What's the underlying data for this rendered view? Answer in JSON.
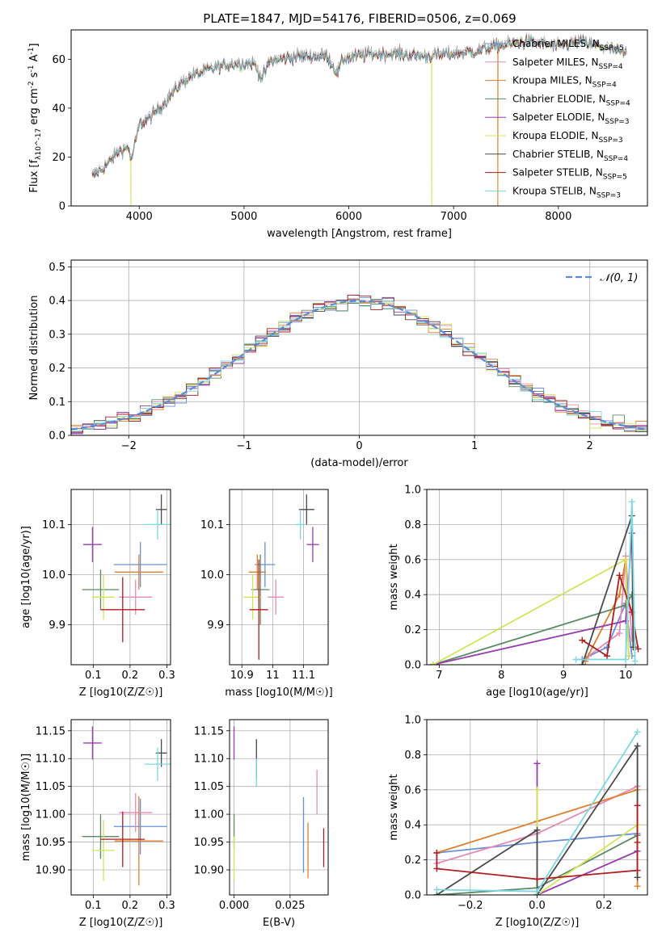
{
  "title": "PLATE=1847, MJD=54176, FIBERID=0506, z=0.069",
  "colors": [
    "#6a8fd8",
    "#e88ab8",
    "#e0802c",
    "#5a8a62",
    "#9a3cb0",
    "#d4e45a",
    "#4a4a4a",
    "#b01e1e",
    "#7cd8e2"
  ],
  "chart_data": [
    {
      "type": "line",
      "id": "spectrum",
      "xlabel": "wavelength [Angstrom, rest frame]",
      "ylabel": "Flux [f_λ10^-17 erg cm^-2 s^-1 A^-1]",
      "xlim": [
        3350,
        8850
      ],
      "ylim": [
        0,
        72
      ],
      "xticks": [
        4000,
        5000,
        6000,
        7000,
        8000
      ],
      "yticks": [
        0,
        20,
        40,
        60
      ],
      "grid": false,
      "legend_position": "top-right",
      "series": [
        {
          "name": "Chabrier MILES, N_SSP=5"
        },
        {
          "name": "Salpeter MILES, N_SSP=4"
        },
        {
          "name": "Kroupa MILES, N_SSP=4"
        },
        {
          "name": "Chabrier ELODIE, N_SSP=4"
        },
        {
          "name": "Salpeter ELODIE, N_SSP=3"
        },
        {
          "name": "Kroupa ELODIE, N_SSP=3"
        },
        {
          "name": "Chabrier STELIB, N_SSP=4"
        },
        {
          "name": "Salpeter STELIB, N_SSP=5"
        },
        {
          "name": "Kroupa STELIB, N_SSP=3"
        }
      ],
      "continuum_points": [
        [
          3550,
          12
        ],
        [
          3700,
          17
        ],
        [
          3800,
          22
        ],
        [
          3900,
          24
        ],
        [
          3920,
          18
        ],
        [
          3960,
          25
        ],
        [
          4000,
          33
        ],
        [
          4100,
          36
        ],
        [
          4200,
          40
        ],
        [
          4300,
          45
        ],
        [
          4400,
          50
        ],
        [
          4500,
          53
        ],
        [
          4700,
          56
        ],
        [
          4900,
          58
        ],
        [
          5100,
          58
        ],
        [
          5170,
          52
        ],
        [
          5250,
          59
        ],
        [
          5500,
          61
        ],
        [
          5800,
          61
        ],
        [
          5890,
          54
        ],
        [
          5950,
          60
        ],
        [
          6200,
          62
        ],
        [
          6500,
          62
        ],
        [
          6700,
          61
        ],
        [
          7000,
          62
        ],
        [
          7200,
          63
        ],
        [
          7500,
          66
        ],
        [
          7700,
          67
        ],
        [
          8000,
          65
        ],
        [
          8200,
          67
        ],
        [
          8500,
          64
        ],
        [
          8650,
          62
        ]
      ],
      "dropouts": [
        {
          "x": 3920,
          "series": "Kroupa ELODIE, N_SSP=3"
        },
        {
          "x": 6790,
          "series": "Kroupa ELODIE, N_SSP=3"
        },
        {
          "x": 7420,
          "series": "Kroupa MILES, N_SSP=4"
        }
      ]
    },
    {
      "type": "area",
      "id": "residuals",
      "xlabel": "(data-model)/error",
      "ylabel": "Normed distribution",
      "xlim": [
        -2.5,
        2.5
      ],
      "ylim": [
        0,
        0.52
      ],
      "xticks": [
        -2,
        -1,
        0,
        1,
        2
      ],
      "yticks": [
        0.0,
        0.1,
        0.2,
        0.3,
        0.4,
        0.5
      ],
      "grid": true,
      "legend_position": "top-right",
      "reference_curve": {
        "name": "𝒩(0, 1)",
        "mean": 0,
        "sigma": 1
      },
      "bin_width": 0.1,
      "bin_start": -2.5
    },
    {
      "type": "scatter",
      "id": "age-vs-Z",
      "xlabel": "Z [log10(Z/Z☉)]",
      "ylabel": "age  [log10(age/yr)]",
      "xlim": [
        0.04,
        0.31
      ],
      "ylim": [
        9.82,
        10.17
      ],
      "xticks": [
        0.1,
        0.2,
        0.3
      ],
      "yticks": [
        9.9,
        10.0,
        10.1
      ],
      "grid": true,
      "points": [
        {
          "x": 0.228,
          "y": 10.02,
          "xerr": 0.072,
          "yerr": 0.045
        },
        {
          "x": 0.215,
          "y": 9.955,
          "xerr": 0.045,
          "yerr": 0.035
        },
        {
          "x": 0.224,
          "y": 10.005,
          "xerr": 0.066,
          "yerr": 0.035
        },
        {
          "x": 0.12,
          "y": 9.97,
          "xerr": 0.05,
          "yerr": 0.04
        },
        {
          "x": 0.098,
          "y": 10.06,
          "xerr": 0.025,
          "yerr": 0.035
        },
        {
          "x": 0.128,
          "y": 9.955,
          "xerr": 0.03,
          "yerr": 0.045
        },
        {
          "x": 0.285,
          "y": 10.13,
          "xerr": 0.015,
          "yerr": 0.03
        },
        {
          "x": 0.18,
          "y": 9.93,
          "xerr": 0.06,
          "yerr": 0.065
        },
        {
          "x": 0.275,
          "y": 10.1,
          "xerr": 0.035,
          "yerr": 0.03
        }
      ]
    },
    {
      "type": "scatter",
      "id": "age-vs-mass",
      "xlabel": "mass [log10(M/M☉)]",
      "ylabel": "",
      "xlim": [
        10.86,
        11.18
      ],
      "ylim": [
        9.82,
        10.17
      ],
      "xticks": [
        10.9,
        11.0,
        11.1
      ],
      "yticks": [
        9.9,
        10.0,
        10.1
      ],
      "grid": true,
      "points": [
        {
          "x": 10.975,
          "y": 10.02,
          "xerr": 0.033,
          "yerr": 0.045
        },
        {
          "x": 11.01,
          "y": 9.955,
          "xerr": 0.026,
          "yerr": 0.035
        },
        {
          "x": 10.95,
          "y": 10.005,
          "xerr": 0.028,
          "yerr": 0.035
        },
        {
          "x": 10.96,
          "y": 9.97,
          "xerr": 0.03,
          "yerr": 0.07
        },
        {
          "x": 11.13,
          "y": 10.06,
          "xerr": 0.02,
          "yerr": 0.035
        },
        {
          "x": 10.935,
          "y": 9.955,
          "xerr": 0.03,
          "yerr": 0.045
        },
        {
          "x": 11.11,
          "y": 10.13,
          "xerr": 0.025,
          "yerr": 0.03
        },
        {
          "x": 10.955,
          "y": 9.93,
          "xerr": 0.03,
          "yerr": 0.1
        },
        {
          "x": 11.09,
          "y": 10.1,
          "xerr": 0.015,
          "yerr": 0.03
        }
      ]
    },
    {
      "type": "line",
      "id": "mass-weight-vs-age",
      "xlabel": "age  [log10(age/yr)]",
      "ylabel": "mass weight",
      "xlim": [
        6.8,
        10.35
      ],
      "ylim": [
        0,
        1.0
      ],
      "xticks": [
        7,
        8,
        9,
        10
      ],
      "yticks": [
        0.0,
        0.2,
        0.4,
        0.6,
        0.8,
        1.0
      ],
      "grid": true,
      "series": [
        {
          "points": [
            [
              9.3,
              0.03
            ],
            [
              9.7,
              0.1
            ],
            [
              10.0,
              0.35
            ],
            [
              10.1,
              0.05
            ]
          ]
        },
        {
          "points": [
            [
              9.4,
              0.05
            ],
            [
              9.9,
              0.18
            ],
            [
              10.0,
              0.62
            ],
            [
              10.1,
              0.15
            ]
          ]
        },
        {
          "points": [
            [
              9.35,
              0.02
            ],
            [
              9.9,
              0.4
            ],
            [
              10.0,
              0.6
            ],
            [
              10.05,
              0.05
            ]
          ]
        },
        {
          "points": [
            [
              6.9,
              0.0
            ],
            [
              10.0,
              0.34
            ],
            [
              10.1,
              0.4
            ],
            [
              10.15,
              0.1
            ]
          ]
        },
        {
          "points": [
            [
              6.9,
              0.0
            ],
            [
              10.0,
              0.25
            ],
            [
              10.1,
              0.75
            ]
          ]
        },
        {
          "points": [
            [
              6.9,
              0.0
            ],
            [
              10.0,
              0.6
            ],
            [
              10.05,
              0.05
            ]
          ]
        },
        {
          "points": [
            [
              9.3,
              0.0
            ],
            [
              10.1,
              0.85
            ],
            [
              10.12,
              0.1
            ]
          ]
        },
        {
          "points": [
            [
              9.3,
              0.14
            ],
            [
              9.7,
              0.05
            ],
            [
              9.9,
              0.51
            ],
            [
              10.1,
              0.3
            ],
            [
              10.2,
              0.09
            ]
          ]
        },
        {
          "points": [
            [
              9.2,
              0.03
            ],
            [
              10.0,
              0.03
            ],
            [
              10.1,
              0.93
            ],
            [
              10.15,
              0.02
            ]
          ]
        }
      ]
    },
    {
      "type": "scatter",
      "id": "mass-vs-Z",
      "xlabel": "Z [log10(Z/Z☉)]",
      "ylabel": "mass [log10(M/M☉)]",
      "xlim": [
        0.04,
        0.31
      ],
      "ylim": [
        10.855,
        11.17
      ],
      "xticks": [
        0.1,
        0.2,
        0.3
      ],
      "yticks": [
        10.9,
        10.95,
        11.0,
        11.05,
        11.1,
        11.15
      ],
      "grid": true,
      "points": [
        {
          "x": 0.228,
          "y": 10.978,
          "xerr": 0.072,
          "yerr": 0.05
        },
        {
          "x": 0.215,
          "y": 11.003,
          "xerr": 0.045,
          "yerr": 0.035
        },
        {
          "x": 0.224,
          "y": 10.952,
          "xerr": 0.066,
          "yerr": 0.08
        },
        {
          "x": 0.12,
          "y": 10.96,
          "xerr": 0.05,
          "yerr": 0.04
        },
        {
          "x": 0.098,
          "y": 11.128,
          "xerr": 0.025,
          "yerr": 0.03
        },
        {
          "x": 0.128,
          "y": 10.935,
          "xerr": 0.03,
          "yerr": 0.055
        },
        {
          "x": 0.285,
          "y": 11.11,
          "xerr": 0.015,
          "yerr": 0.025
        },
        {
          "x": 0.18,
          "y": 10.955,
          "xerr": 0.06,
          "yerr": 0.05
        },
        {
          "x": 0.275,
          "y": 11.09,
          "xerr": 0.035,
          "yerr": 0.03
        }
      ]
    },
    {
      "type": "scatter",
      "id": "mass-vs-EBV",
      "xlabel": "E(B-V)",
      "ylabel": "",
      "xlim": [
        -0.002,
        0.042
      ],
      "ylim": [
        10.855,
        11.17
      ],
      "xticks": [
        0.0,
        0.025
      ],
      "yticks": [
        10.9,
        10.95,
        11.0,
        11.05,
        11.1,
        11.15
      ],
      "grid": true,
      "points": [
        {
          "x": 0.031,
          "y": 10.963,
          "xerr": 0,
          "yerr": 0.068
        },
        {
          "x": 0.037,
          "y": 11.04,
          "xerr": 0,
          "yerr": 0.04
        },
        {
          "x": 0.033,
          "y": 10.935,
          "xerr": 0,
          "yerr": 0.05
        },
        {
          "x": 0.0,
          "y": 10.97,
          "xerr": 0,
          "yerr": 0.03
        },
        {
          "x": 0.0,
          "y": 11.128,
          "xerr": 0,
          "yerr": 0.03
        },
        {
          "x": 0.0,
          "y": 10.92,
          "xerr": 0,
          "yerr": 0.04
        },
        {
          "x": 0.01,
          "y": 11.1,
          "xerr": 0,
          "yerr": 0.035
        },
        {
          "x": 0.04,
          "y": 10.94,
          "xerr": 0,
          "yerr": 0.035
        },
        {
          "x": 0.01,
          "y": 11.075,
          "xerr": 0,
          "yerr": 0.025
        }
      ]
    },
    {
      "type": "line",
      "id": "mass-weight-vs-Z",
      "xlabel": "Z [log10(Z/Z☉)]",
      "ylabel": "mass weight",
      "xlim": [
        -0.33,
        0.33
      ],
      "ylim": [
        0,
        1.0
      ],
      "xticks": [
        -0.2,
        0.0,
        0.2
      ],
      "yticks": [
        0.0,
        0.2,
        0.4,
        0.6,
        0.8,
        1.0
      ],
      "grid": true,
      "series": [
        {
          "points": [
            [
              -0.3,
              0.24
            ],
            [
              0.0,
              0.3
            ],
            [
              0.3,
              0.35
            ]
          ]
        },
        {
          "points": [
            [
              -0.3,
              0.18
            ],
            [
              0.0,
              0.35
            ],
            [
              0.3,
              0.62
            ]
          ]
        },
        {
          "points": [
            [
              -0.3,
              0.24
            ],
            [
              0.0,
              0.42
            ],
            [
              0.3,
              0.6
            ],
            [
              0.3,
              0.05
            ]
          ]
        },
        {
          "points": [
            [
              -0.3,
              0.0
            ],
            [
              0.0,
              0.04
            ],
            [
              0.3,
              0.34
            ]
          ]
        },
        {
          "points": [
            [
              0.0,
              0.75
            ],
            [
              0.0,
              0.0
            ],
            [
              0.3,
              0.25
            ]
          ]
        },
        {
          "points": [
            [
              0.0,
              0.6
            ],
            [
              0.0,
              0.0
            ],
            [
              0.3,
              0.4
            ]
          ]
        },
        {
          "points": [
            [
              -0.3,
              0.0
            ],
            [
              0.0,
              0.37
            ],
            [
              0.0,
              0.0
            ],
            [
              0.3,
              0.85
            ],
            [
              0.3,
              0.1
            ]
          ]
        },
        {
          "points": [
            [
              -0.3,
              0.24
            ],
            [
              -0.3,
              0.15
            ],
            [
              0.0,
              0.09
            ],
            [
              0.3,
              0.14
            ],
            [
              0.3,
              0.51
            ],
            [
              0.3,
              0.3
            ]
          ]
        },
        {
          "points": [
            [
              -0.3,
              0.03
            ],
            [
              0.0,
              0.02
            ],
            [
              0.3,
              0.93
            ]
          ]
        }
      ]
    }
  ]
}
